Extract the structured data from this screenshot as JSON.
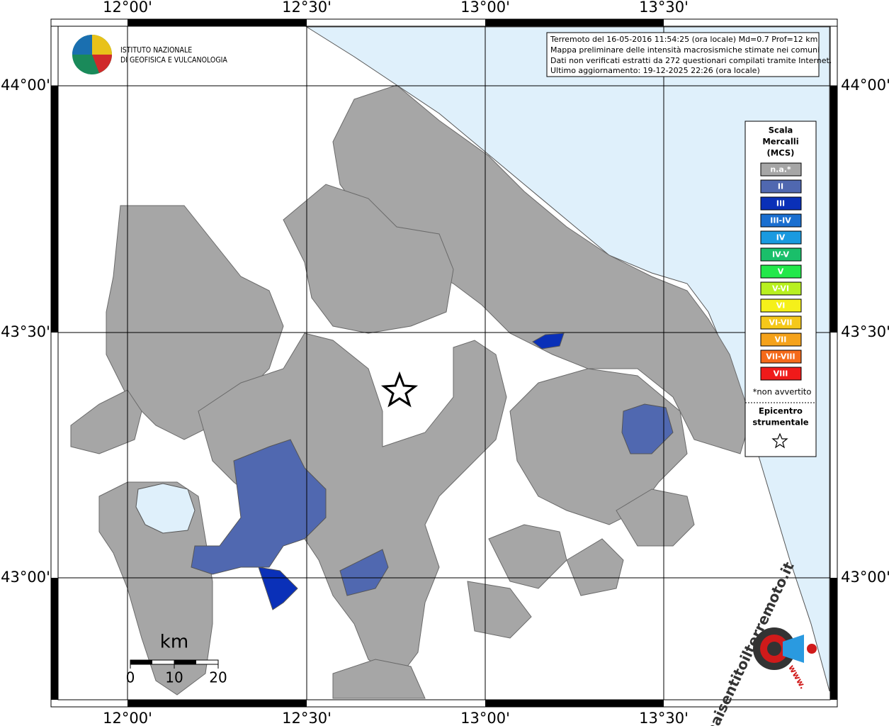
{
  "header": {
    "institute_lines": [
      "ISTITUTO NAZIONALE",
      "DI GEOFISICA E VULCANOLOGIA"
    ]
  },
  "info_box": {
    "lines": [
      "Terremoto del 16-05-2016 11:54:25 (ora locale) Md=0.7 Prof=12 km",
      "Mappa preliminare delle intensità macrosismiche stimate nei comuni",
      "Dati non verificati estratti da 272 questionari compilati tramite Internet.",
      "Ultimo aggiornamento: 19-12-2025 22:26 (ora locale)"
    ]
  },
  "map": {
    "longitude_labels": [
      "12°00'",
      "12°30'",
      "13°00'",
      "13°30'"
    ],
    "latitude_labels": [
      "44°00'",
      "43°30'",
      "43°00'"
    ]
  },
  "legend": {
    "title_lines": [
      "Scala",
      "Mercalli",
      "(MCS)"
    ],
    "items": [
      {
        "label": "n.a.*",
        "color": "#a6a6a6"
      },
      {
        "label": "II",
        "color": "#5068b0"
      },
      {
        "label": "III",
        "color": "#0a30b8"
      },
      {
        "label": "III-IV",
        "color": "#1a6fd0"
      },
      {
        "label": "IV",
        "color": "#1a9ae0"
      },
      {
        "label": "IV-V",
        "color": "#1abf6a"
      },
      {
        "label": "V",
        "color": "#22e84a"
      },
      {
        "label": "V-VI",
        "color": "#b8f020"
      },
      {
        "label": "VI",
        "color": "#f5f01a"
      },
      {
        "label": "VI-VII",
        "color": "#f5c81a"
      },
      {
        "label": "VII",
        "color": "#f5a21a"
      },
      {
        "label": "VII-VIII",
        "color": "#f56a1a"
      },
      {
        "label": "VIII",
        "color": "#f01a1a"
      }
    ],
    "footnote": "*non avvertito",
    "epicenter_lines": [
      "Epicentro",
      "strumentale"
    ]
  },
  "scale_bar": {
    "unit": "km",
    "ticks": [
      0,
      10,
      20
    ]
  },
  "watermark": {
    "site": "haisentitoilterremoto.it",
    "prefix": "www."
  }
}
